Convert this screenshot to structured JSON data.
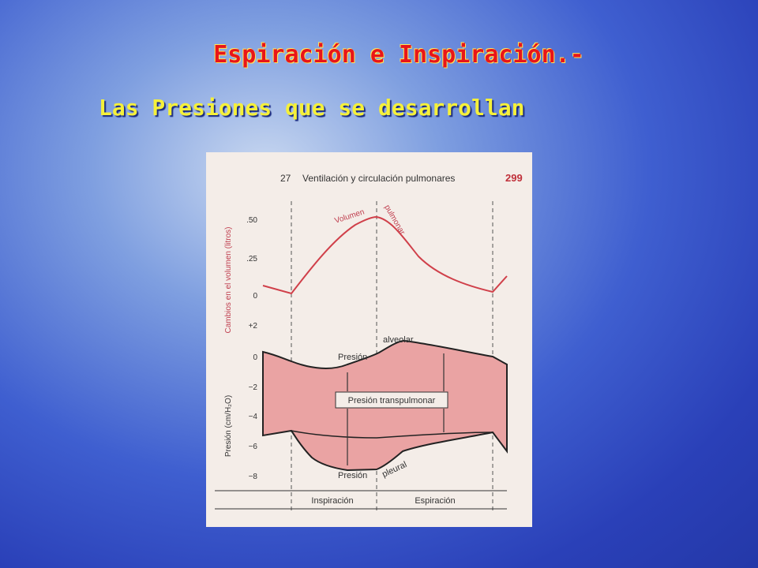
{
  "slide": {
    "title": "Espiración e Inspiración.-",
    "subtitle": "Las Presiones que se desarrollan"
  },
  "figure": {
    "chapter": "27",
    "page_header": "Ventilación y circulación pulmonares",
    "page_number": "299",
    "volume_axis_label": "Cambios en el volumen (litros)",
    "pressure_axis_label": "Presión (cm/H₂O)",
    "volume_ticks": [
      ".50",
      ".25",
      "0"
    ],
    "pressure_ticks": [
      "+2",
      "0",
      "−2",
      "−4",
      "−6",
      "−8"
    ],
    "curve_labels": {
      "volume": "Volumen",
      "volume_2": "pulmonar",
      "alveolar": "Presión",
      "alveolar_2": "alveolar",
      "transpulmonary": "Presión transpulmonar",
      "pleural": "Presión",
      "pleural_2": "pleural"
    },
    "phases": [
      "Inspiración",
      "Espiración"
    ]
  }
}
